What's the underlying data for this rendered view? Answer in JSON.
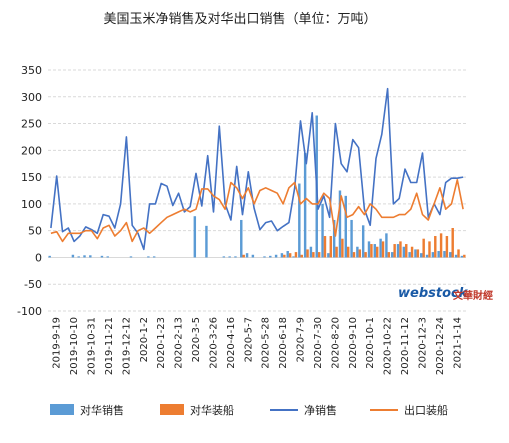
{
  "chart_data": {
    "type": "bar",
    "title": "美国玉米净销售及对华出口销售（单位：万吨）",
    "xlabel": "",
    "ylabel": "",
    "ylim": [
      -100,
      350
    ],
    "yticks": [
      -100,
      -50,
      0,
      50,
      100,
      150,
      200,
      250,
      300,
      350
    ],
    "grid": true,
    "legend_position": "bottom",
    "x_tick_labels": [
      "2019-9-19",
      "2019-10-10",
      "2019-10-31",
      "2019-11-21",
      "2019-12-12",
      "2020-1-2",
      "2020-1-23",
      "2020-2-13",
      "2020-3-5",
      "2020-3-26",
      "2020-4-16",
      "2020-5-7",
      "2020-5-28",
      "2020-6-18",
      "2020-7-9",
      "2020-7-30",
      "2020-8-20",
      "2020-9-10",
      "2020-10-1",
      "2020-10-22",
      "2020-11-12",
      "2020-12-3",
      "2020-12-24",
      "2021-1-14"
    ],
    "categories": [
      "2019-9-12",
      "2019-9-19",
      "2019-9-26",
      "2019-10-3",
      "2019-10-10",
      "2019-10-17",
      "2019-10-24",
      "2019-10-31",
      "2019-11-7",
      "2019-11-14",
      "2019-11-21",
      "2019-11-28",
      "2019-12-5",
      "2019-12-12",
      "2019-12-19",
      "2019-12-26",
      "2020-1-2",
      "2020-1-9",
      "2020-1-16",
      "2020-1-23",
      "2020-1-30",
      "2020-2-6",
      "2020-2-13",
      "2020-2-20",
      "2020-2-27",
      "2020-3-5",
      "2020-3-12",
      "2020-3-19",
      "2020-3-26",
      "2020-4-2",
      "2020-4-9",
      "2020-4-16",
      "2020-4-23",
      "2020-4-30",
      "2020-5-7",
      "2020-5-14",
      "2020-5-21",
      "2020-5-28",
      "2020-6-4",
      "2020-6-11",
      "2020-6-18",
      "2020-6-25",
      "2020-7-2",
      "2020-7-9",
      "2020-7-16",
      "2020-7-23",
      "2020-7-30",
      "2020-8-6",
      "2020-8-13",
      "2020-8-20",
      "2020-8-27",
      "2020-9-3",
      "2020-9-10",
      "2020-9-17",
      "2020-9-24",
      "2020-10-1",
      "2020-10-8",
      "2020-10-15",
      "2020-10-22",
      "2020-10-29",
      "2020-11-5",
      "2020-11-12",
      "2020-11-19",
      "2020-11-26",
      "2020-12-3",
      "2020-12-10",
      "2020-12-17",
      "2020-12-24",
      "2020-12-31",
      "2021-1-7",
      "2021-1-14",
      "2021-1-21"
    ],
    "series": [
      {
        "name": "对华销售",
        "kind": "bar",
        "color": "#5b9bd5",
        "values": [
          3,
          0,
          0,
          0,
          5,
          2,
          4,
          4,
          0,
          3,
          2,
          0,
          0,
          0,
          2,
          0,
          0,
          2,
          2,
          0,
          0,
          0,
          0,
          0,
          0,
          77,
          0,
          59,
          0,
          0,
          2,
          2,
          2,
          70,
          8,
          5,
          0,
          2,
          3,
          5,
          8,
          12,
          2,
          138,
          195,
          20,
          265,
          100,
          8,
          70,
          125,
          115,
          70,
          20,
          60,
          30,
          25,
          35,
          45,
          10,
          25,
          20,
          10,
          15,
          8,
          5,
          10,
          12,
          12,
          10,
          5,
          3
        ]
      },
      {
        "name": "对华装船",
        "kind": "bar",
        "color": "#ed7d31",
        "values": [
          0,
          0,
          0,
          0,
          0,
          0,
          0,
          0,
          0,
          0,
          0,
          0,
          0,
          0,
          0,
          0,
          0,
          0,
          0,
          0,
          0,
          0,
          0,
          0,
          0,
          0,
          0,
          0,
          0,
          0,
          0,
          0,
          0,
          5,
          0,
          0,
          0,
          0,
          0,
          0,
          5,
          8,
          10,
          5,
          15,
          10,
          10,
          40,
          40,
          20,
          35,
          20,
          10,
          15,
          10,
          25,
          20,
          30,
          10,
          25,
          30,
          25,
          20,
          15,
          35,
          30,
          40,
          45,
          40,
          55,
          15,
          5
        ]
      },
      {
        "name": "净销售",
        "kind": "line",
        "color": "#4472c4",
        "values": [
          55,
          152,
          48,
          55,
          30,
          40,
          57,
          52,
          45,
          80,
          77,
          55,
          100,
          225,
          60,
          45,
          15,
          100,
          100,
          138,
          133,
          97,
          120,
          85,
          95,
          157,
          96,
          190,
          85,
          245,
          100,
          70,
          170,
          80,
          160,
          92,
          52,
          65,
          68,
          50,
          58,
          65,
          130,
          255,
          175,
          270,
          90,
          115,
          75,
          250,
          175,
          160,
          220,
          205,
          90,
          60,
          185,
          230,
          315,
          100,
          110,
          165,
          140,
          140,
          195,
          75,
          100,
          80,
          140,
          148,
          148,
          150
        ]
      },
      {
        "name": "出口装船",
        "kind": "line",
        "color": "#ed7d31",
        "values": [
          45,
          48,
          30,
          45,
          45,
          45,
          50,
          50,
          35,
          55,
          60,
          40,
          50,
          65,
          30,
          50,
          55,
          45,
          55,
          65,
          75,
          80,
          85,
          90,
          85,
          90,
          128,
          128,
          115,
          108,
          90,
          140,
          130,
          110,
          130,
          100,
          125,
          130,
          125,
          120,
          100,
          130,
          140,
          100,
          110,
          100,
          100,
          120,
          110,
          40,
          115,
          75,
          80,
          95,
          80,
          100,
          90,
          75,
          75,
          75,
          80,
          80,
          90,
          120,
          80,
          70,
          100,
          130,
          90,
          100,
          145,
          90
        ]
      }
    ]
  },
  "watermark": {
    "brand": "webstock",
    "sub": "文華財經"
  }
}
